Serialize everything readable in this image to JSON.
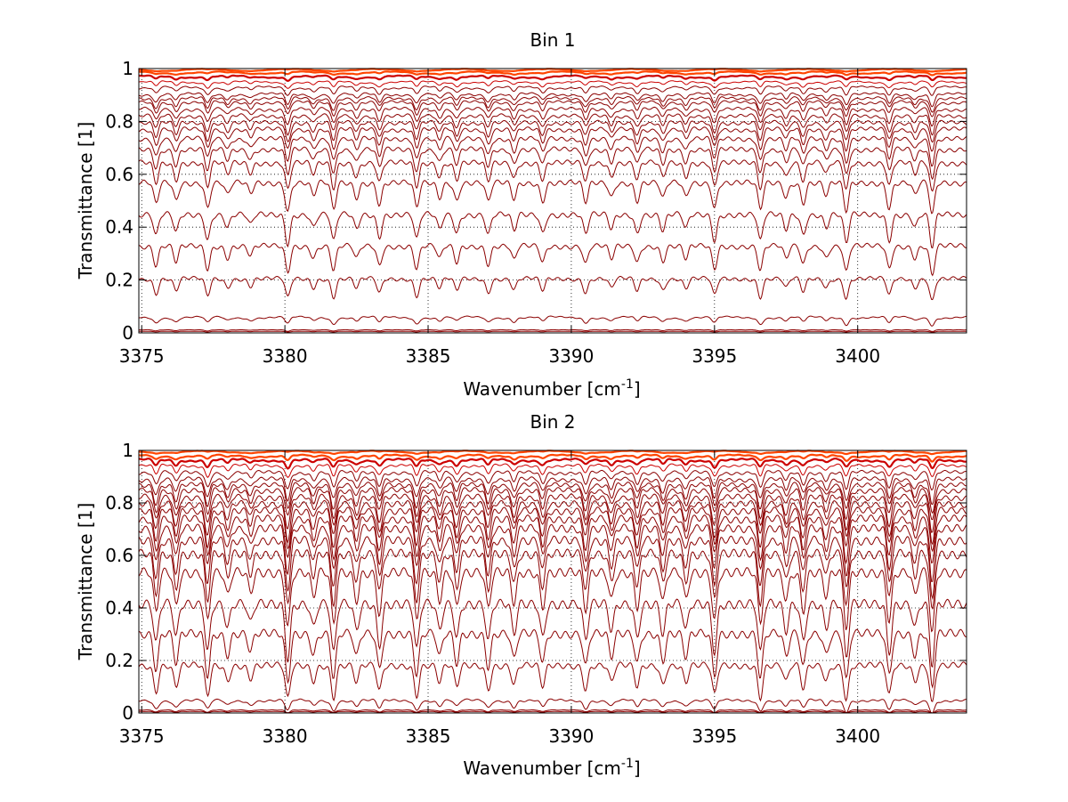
{
  "colors": {
    "background": "#ffffff",
    "axes": "#000000",
    "grid": "#000000",
    "line_dark": "#8b0000",
    "line_red": "#cc0000",
    "line_orange": "#ff4500"
  },
  "chart_data": [
    {
      "type": "line",
      "title": "Bin 1",
      "xlabel": "Wavenumber [cm",
      "xlabel_sup": "-1",
      "xlabel_end": "]",
      "ylabel": "Transmittance [1]",
      "xlim": [
        3374.9,
        3403.8
      ],
      "ylim": [
        0,
        1
      ],
      "xticks": [
        3375,
        3380,
        3385,
        3390,
        3395,
        3400
      ],
      "yticks": [
        0,
        0.2,
        0.4,
        0.6,
        0.8,
        1
      ],
      "xtick_labels": [
        "3375",
        "3380",
        "3385",
        "3390",
        "3395",
        "3400"
      ],
      "ytick_labels": [
        "0",
        "0.2",
        "0.4",
        "0.6",
        "0.8",
        "1"
      ],
      "grid": true,
      "grid_style": "dotted",
      "line_depth_scale": 1.0,
      "series_baselines": [
        0.0,
        0.006,
        0.012,
        0.06,
        0.21,
        0.335,
        0.455,
        0.575,
        0.65,
        0.7,
        0.74,
        0.775,
        0.8,
        0.825,
        0.85,
        0.875,
        0.89,
        0.905,
        0.93,
        0.95,
        0.97,
        0.985,
        0.995
      ]
    },
    {
      "type": "line",
      "title": "Bin 2",
      "xlabel": "Wavenumber [cm",
      "xlabel_sup": "-1",
      "xlabel_end": "]",
      "ylabel": "Transmittance [1]",
      "xlim": [
        3374.9,
        3403.8
      ],
      "ylim": [
        0,
        1
      ],
      "xticks": [
        3375,
        3380,
        3385,
        3390,
        3395,
        3400
      ],
      "yticks": [
        0,
        0.2,
        0.4,
        0.6,
        0.8,
        1
      ],
      "xtick_labels": [
        "3375",
        "3380",
        "3385",
        "3390",
        "3395",
        "3400"
      ],
      "ytick_labels": [
        "0",
        "0.2",
        "0.4",
        "0.6",
        "0.8",
        "1"
      ],
      "grid": true,
      "grid_style": "dotted",
      "line_depth_scale": 1.9,
      "series_baselines": [
        0.0,
        0.006,
        0.012,
        0.05,
        0.19,
        0.315,
        0.43,
        0.55,
        0.62,
        0.67,
        0.715,
        0.75,
        0.78,
        0.805,
        0.83,
        0.855,
        0.875,
        0.895,
        0.92,
        0.945,
        0.965,
        0.98,
        0.995
      ]
    }
  ],
  "absorption_lines": [
    {
      "x": 3375.5,
      "depth": 0.6
    },
    {
      "x": 3376.2,
      "depth": 0.5
    },
    {
      "x": 3377.3,
      "depth": 0.7
    },
    {
      "x": 3378.0,
      "depth": 0.35
    },
    {
      "x": 3378.8,
      "depth": 0.3
    },
    {
      "x": 3380.1,
      "depth": 0.8
    },
    {
      "x": 3381.0,
      "depth": 0.35
    },
    {
      "x": 3381.7,
      "depth": 0.75
    },
    {
      "x": 3382.5,
      "depth": 0.4
    },
    {
      "x": 3383.3,
      "depth": 0.6
    },
    {
      "x": 3384.6,
      "depth": 0.7
    },
    {
      "x": 3385.4,
      "depth": 0.4
    },
    {
      "x": 3386.0,
      "depth": 0.5
    },
    {
      "x": 3387.1,
      "depth": 0.55
    },
    {
      "x": 3388.0,
      "depth": 0.45
    },
    {
      "x": 3389.0,
      "depth": 0.5
    },
    {
      "x": 3390.5,
      "depth": 0.55
    },
    {
      "x": 3391.4,
      "depth": 0.4
    },
    {
      "x": 3392.3,
      "depth": 0.5
    },
    {
      "x": 3393.2,
      "depth": 0.45
    },
    {
      "x": 3394.0,
      "depth": 0.4
    },
    {
      "x": 3395.0,
      "depth": 0.7
    },
    {
      "x": 3396.6,
      "depth": 0.75
    },
    {
      "x": 3397.5,
      "depth": 0.4
    },
    {
      "x": 3398.1,
      "depth": 0.55
    },
    {
      "x": 3398.9,
      "depth": 0.35
    },
    {
      "x": 3399.6,
      "depth": 0.8
    },
    {
      "x": 3401.1,
      "depth": 0.7
    },
    {
      "x": 3402.0,
      "depth": 0.35
    },
    {
      "x": 3402.6,
      "depth": 0.9
    }
  ]
}
